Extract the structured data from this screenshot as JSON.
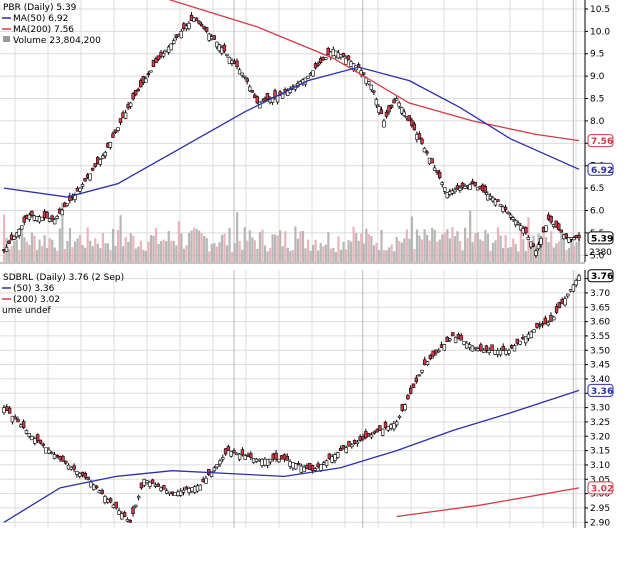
{
  "chart_data": [
    {
      "type": "candlestick",
      "panel": "top",
      "title": "PBR (Daily) 5.39",
      "legend": [
        {
          "label": "MA(50) 6.92",
          "color": "#2b2fa8",
          "kind": "line"
        },
        {
          "label": "MA(200) 7.56",
          "color": "#d43a4a",
          "kind": "line"
        },
        {
          "label": "Volume 23,804,200",
          "color": "#9a9a9a",
          "kind": "bar"
        }
      ],
      "ylim": [
        4.85,
        10.7
      ],
      "yticks": [
        5.0,
        5.5,
        6.0,
        6.5,
        7.0,
        7.5,
        8.0,
        8.5,
        9.0,
        9.5,
        10.0,
        10.5
      ],
      "ytick_labels": [
        "5.0",
        "5.5",
        "6.0",
        "6.5",
        "7.0",
        "7.5",
        "8.0",
        "8.5",
        "9.0",
        "9.5",
        "10.0",
        "10.5"
      ],
      "grid": true,
      "markers": [
        {
          "text": "7.56",
          "value": 7.56,
          "color": "#d43a4a"
        },
        {
          "text": "6.92",
          "value": 6.92,
          "color": "#2b2fa8"
        },
        {
          "text": "5.39",
          "value": 5.39,
          "color": "#000000"
        }
      ],
      "volume_label": "2380",
      "close_points": [
        {
          "x": 0,
          "y": 5.1
        },
        {
          "x": 10,
          "y": 5.9
        },
        {
          "x": 20,
          "y": 5.8
        },
        {
          "x": 30,
          "y": 6.5
        },
        {
          "x": 40,
          "y": 7.3
        },
        {
          "x": 50,
          "y": 8.4
        },
        {
          "x": 60,
          "y": 9.3
        },
        {
          "x": 70,
          "y": 10.0
        },
        {
          "x": 75,
          "y": 10.3
        },
        {
          "x": 85,
          "y": 9.7
        },
        {
          "x": 95,
          "y": 9.0
        },
        {
          "x": 100,
          "y": 8.4
        },
        {
          "x": 110,
          "y": 8.6
        },
        {
          "x": 120,
          "y": 9.0
        },
        {
          "x": 130,
          "y": 9.6
        },
        {
          "x": 140,
          "y": 9.2
        },
        {
          "x": 145,
          "y": 8.8
        },
        {
          "x": 150,
          "y": 8.0
        },
        {
          "x": 155,
          "y": 8.5
        },
        {
          "x": 165,
          "y": 7.5
        },
        {
          "x": 175,
          "y": 6.4
        },
        {
          "x": 185,
          "y": 6.6
        },
        {
          "x": 195,
          "y": 6.2
        },
        {
          "x": 205,
          "y": 5.6
        },
        {
          "x": 210,
          "y": 5.1
        },
        {
          "x": 215,
          "y": 5.8
        },
        {
          "x": 222,
          "y": 5.4
        },
        {
          "x": 227,
          "y": 5.39
        }
      ],
      "ma50_points": [
        {
          "x": 0,
          "y": 6.5
        },
        {
          "x": 25,
          "y": 6.3
        },
        {
          "x": 45,
          "y": 6.6
        },
        {
          "x": 70,
          "y": 7.4
        },
        {
          "x": 95,
          "y": 8.2
        },
        {
          "x": 120,
          "y": 8.9
        },
        {
          "x": 140,
          "y": 9.2
        },
        {
          "x": 160,
          "y": 8.9
        },
        {
          "x": 180,
          "y": 8.3
        },
        {
          "x": 200,
          "y": 7.6
        },
        {
          "x": 227,
          "y": 6.92
        }
      ],
      "ma200_points": [
        {
          "x": 0,
          "y": 11.5
        },
        {
          "x": 60,
          "y": 10.8
        },
        {
          "x": 100,
          "y": 10.1
        },
        {
          "x": 130,
          "y": 9.4
        },
        {
          "x": 160,
          "y": 8.4
        },
        {
          "x": 185,
          "y": 8.0
        },
        {
          "x": 210,
          "y": 7.7
        },
        {
          "x": 227,
          "y": 7.56
        }
      ]
    },
    {
      "type": "candlestick",
      "panel": "bottom",
      "title": "SDBRL (Daily) 3.76 (2 Sep)",
      "legend": [
        {
          "label": "(50) 3.36",
          "color": "#2b2fa8",
          "kind": "line"
        },
        {
          "label": "(200) 3.02",
          "color": "#d43a4a",
          "kind": "line"
        },
        {
          "label": "ume undef",
          "color": "#000000",
          "kind": "text"
        }
      ],
      "ylim": [
        2.88,
        3.78
      ],
      "yticks": [
        2.9,
        2.95,
        3.0,
        3.05,
        3.1,
        3.15,
        3.2,
        3.25,
        3.3,
        3.35,
        3.4,
        3.45,
        3.5,
        3.55,
        3.6,
        3.65,
        3.7,
        3.75
      ],
      "ytick_labels": [
        "2.90",
        "2.95",
        "3.00",
        "3.05",
        "3.10",
        "3.15",
        "3.20",
        "3.25",
        "3.30",
        "3.35",
        "3.40",
        "3.45",
        "3.50",
        "3.55",
        "3.60",
        "3.65",
        "3.70",
        "3.75"
      ],
      "grid": true,
      "markers": [
        {
          "text": "3.76",
          "value": 3.76,
          "color": "#000000"
        },
        {
          "text": "3.36",
          "value": 3.36,
          "color": "#2b2fa8"
        },
        {
          "text": "3.02",
          "value": 3.02,
          "color": "#d43a4a"
        }
      ],
      "close_points": [
        {
          "x": 0,
          "y": 3.3
        },
        {
          "x": 10,
          "y": 3.2
        },
        {
          "x": 20,
          "y": 3.12
        },
        {
          "x": 30,
          "y": 3.05
        },
        {
          "x": 40,
          "y": 2.95
        },
        {
          "x": 45,
          "y": 2.9
        },
        {
          "x": 50,
          "y": 3.05
        },
        {
          "x": 60,
          "y": 3.0
        },
        {
          "x": 70,
          "y": 3.03
        },
        {
          "x": 80,
          "y": 3.15
        },
        {
          "x": 90,
          "y": 3.12
        },
        {
          "x": 100,
          "y": 3.12
        },
        {
          "x": 110,
          "y": 3.08
        },
        {
          "x": 120,
          "y": 3.15
        },
        {
          "x": 130,
          "y": 3.2
        },
        {
          "x": 140,
          "y": 3.25
        },
        {
          "x": 150,
          "y": 3.45
        },
        {
          "x": 160,
          "y": 3.55
        },
        {
          "x": 170,
          "y": 3.5
        },
        {
          "x": 180,
          "y": 3.5
        },
        {
          "x": 190,
          "y": 3.58
        },
        {
          "x": 195,
          "y": 3.6
        },
        {
          "x": 205,
          "y": 3.76
        }
      ],
      "ma50_points": [
        {
          "x": 0,
          "y": 2.9
        },
        {
          "x": 20,
          "y": 3.02
        },
        {
          "x": 40,
          "y": 3.06
        },
        {
          "x": 60,
          "y": 3.08
        },
        {
          "x": 80,
          "y": 3.07
        },
        {
          "x": 100,
          "y": 3.06
        },
        {
          "x": 120,
          "y": 3.09
        },
        {
          "x": 140,
          "y": 3.15
        },
        {
          "x": 160,
          "y": 3.22
        },
        {
          "x": 180,
          "y": 3.28
        },
        {
          "x": 205,
          "y": 3.36
        }
      ],
      "ma200_points": [
        {
          "x": 140,
          "y": 2.92
        },
        {
          "x": 170,
          "y": 2.96
        },
        {
          "x": 205,
          "y": 3.02
        }
      ]
    }
  ]
}
